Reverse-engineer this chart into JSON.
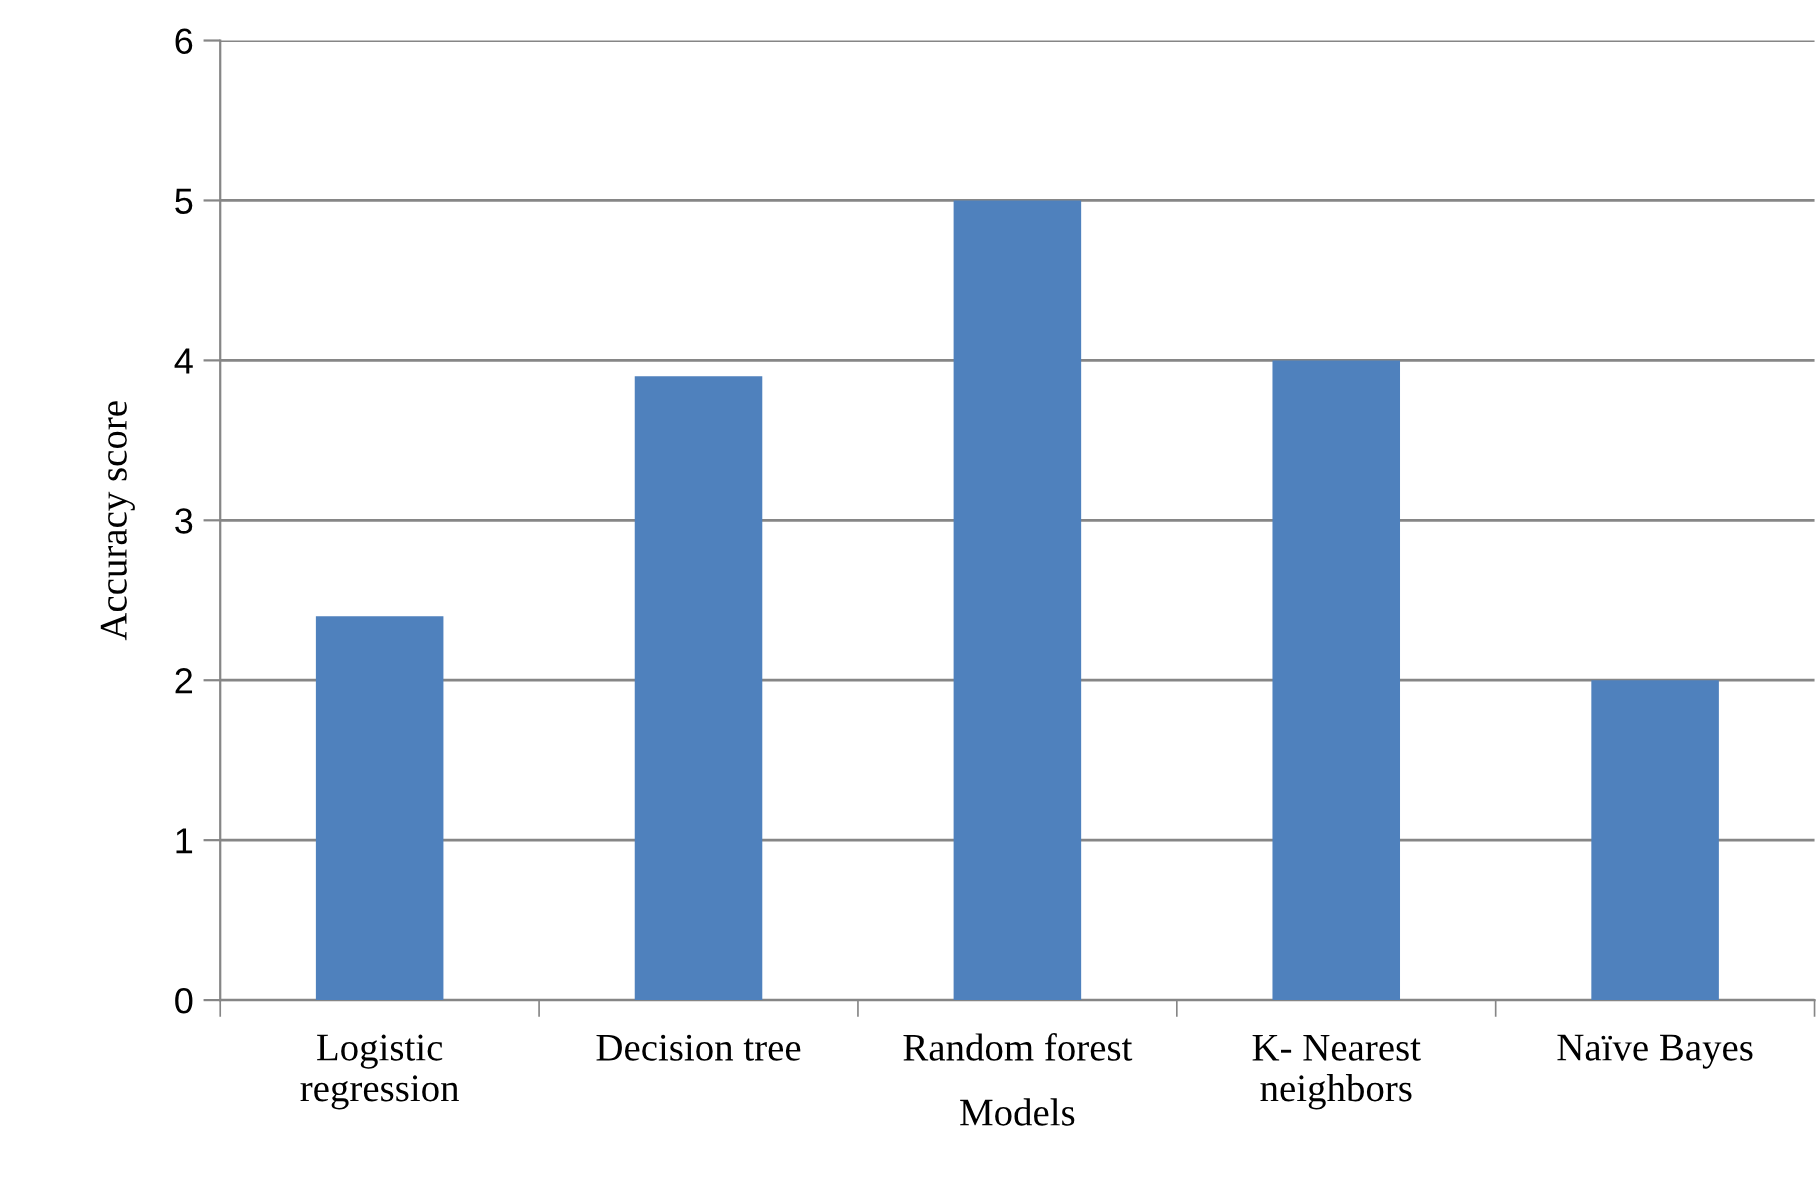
{
  "chart_data": {
    "type": "bar",
    "xlabel": "Models",
    "ylabel": "Accuracy score",
    "categories": [
      "Logistic\nregression",
      "Decision tree",
      "Random forest",
      "K- Nearest\nneighbors",
      "Naïve Bayes"
    ],
    "values": [
      2.4,
      3.9,
      5,
      4,
      2
    ],
    "color": "#4f81bd",
    "ylim": [
      0,
      6
    ],
    "yticks": [
      0,
      1,
      2,
      3,
      4,
      5,
      6
    ],
    "grid": "y",
    "legend": false
  }
}
